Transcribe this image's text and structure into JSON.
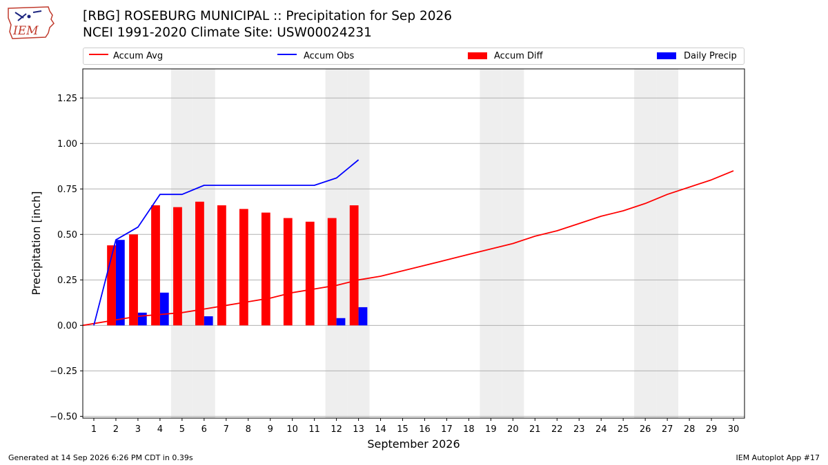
{
  "logo": {
    "text": "IEM"
  },
  "title": {
    "line1": "[RBG] ROSEBURG MUNICIPAL :: Precipitation for Sep 2026",
    "line2": "NCEI 1991-2020 Climate Site: USW00024231"
  },
  "footer": {
    "left": "Generated at 14 Sep 2026 6:26 PM CDT in 0.39s",
    "right": "IEM Autoplot App #17"
  },
  "colors": {
    "accum_avg": "#ff0000",
    "accum_obs": "#0000ff",
    "accum_diff": "#ff0000",
    "daily_precip": "#0000ff",
    "weekend_shade": "#eeeeee",
    "grid": "#b0b0b0"
  },
  "chart_data": {
    "type": "bar",
    "xlabel": "September 2026",
    "ylabel": "Precipitation [inch]",
    "xlim": [
      0.5,
      30.5
    ],
    "ylim": [
      -0.51,
      1.41
    ],
    "grid": true,
    "legend_position": "top",
    "x": [
      1,
      2,
      3,
      4,
      5,
      6,
      7,
      8,
      9,
      10,
      11,
      12,
      13,
      14,
      15,
      16,
      17,
      18,
      19,
      20,
      21,
      22,
      23,
      24,
      25,
      26,
      27,
      28,
      29,
      30
    ],
    "xtick_labels": [
      "1",
      "2",
      "3",
      "4",
      "5",
      "6",
      "7",
      "8",
      "9",
      "10",
      "11",
      "12",
      "13",
      "14",
      "15",
      "16",
      "17",
      "18",
      "19",
      "20",
      "21",
      "22",
      "23",
      "24",
      "25",
      "26",
      "27",
      "28",
      "29",
      "30"
    ],
    "yticks": [
      -0.5,
      -0.25,
      0.0,
      0.25,
      0.5,
      0.75,
      1.0,
      1.25
    ],
    "ytick_labels": [
      "−0.50",
      "−0.25",
      "0.00",
      "0.25",
      "0.50",
      "0.75",
      "1.00",
      "1.25"
    ],
    "shaded_days": [
      5,
      6,
      12,
      13,
      19,
      20,
      26,
      27
    ],
    "series": [
      {
        "name": "Accum Avg",
        "kind": "line",
        "color": "#ff0000",
        "x": [
          0.5,
          1,
          2,
          3,
          4,
          5,
          6,
          7,
          8,
          9,
          10,
          11,
          12,
          13,
          14,
          15,
          16,
          17,
          18,
          19,
          20,
          21,
          22,
          23,
          24,
          25,
          26,
          27,
          28,
          29,
          30
        ],
        "values": [
          0.0,
          0.01,
          0.03,
          0.05,
          0.06,
          0.07,
          0.09,
          0.11,
          0.13,
          0.15,
          0.18,
          0.2,
          0.22,
          0.25,
          0.27,
          0.3,
          0.33,
          0.36,
          0.39,
          0.42,
          0.45,
          0.49,
          0.52,
          0.56,
          0.6,
          0.63,
          0.67,
          0.72,
          0.76,
          0.8,
          0.85
        ]
      },
      {
        "name": "Accum Obs",
        "kind": "line",
        "color": "#0000ff",
        "x": [
          1,
          2,
          3,
          4,
          5,
          6,
          7,
          8,
          9,
          10,
          11,
          12,
          13
        ],
        "values": [
          0.0,
          0.47,
          0.54,
          0.72,
          0.72,
          0.77,
          0.77,
          0.77,
          0.77,
          0.77,
          0.77,
          0.81,
          0.91
        ]
      },
      {
        "name": "Accum Diff",
        "kind": "bar",
        "color": "#ff0000",
        "x": [
          2,
          3,
          4,
          5,
          6,
          7,
          8,
          9,
          10,
          11,
          12,
          13
        ],
        "values": [
          0.44,
          0.5,
          0.66,
          0.65,
          0.68,
          0.66,
          0.64,
          0.62,
          0.59,
          0.57,
          0.59,
          0.66
        ]
      },
      {
        "name": "Daily Precip",
        "kind": "bar",
        "color": "#0000ff",
        "x": [
          2,
          3,
          4,
          6,
          12,
          13
        ],
        "values": [
          0.47,
          0.07,
          0.18,
          0.05,
          0.04,
          0.1
        ]
      }
    ]
  }
}
